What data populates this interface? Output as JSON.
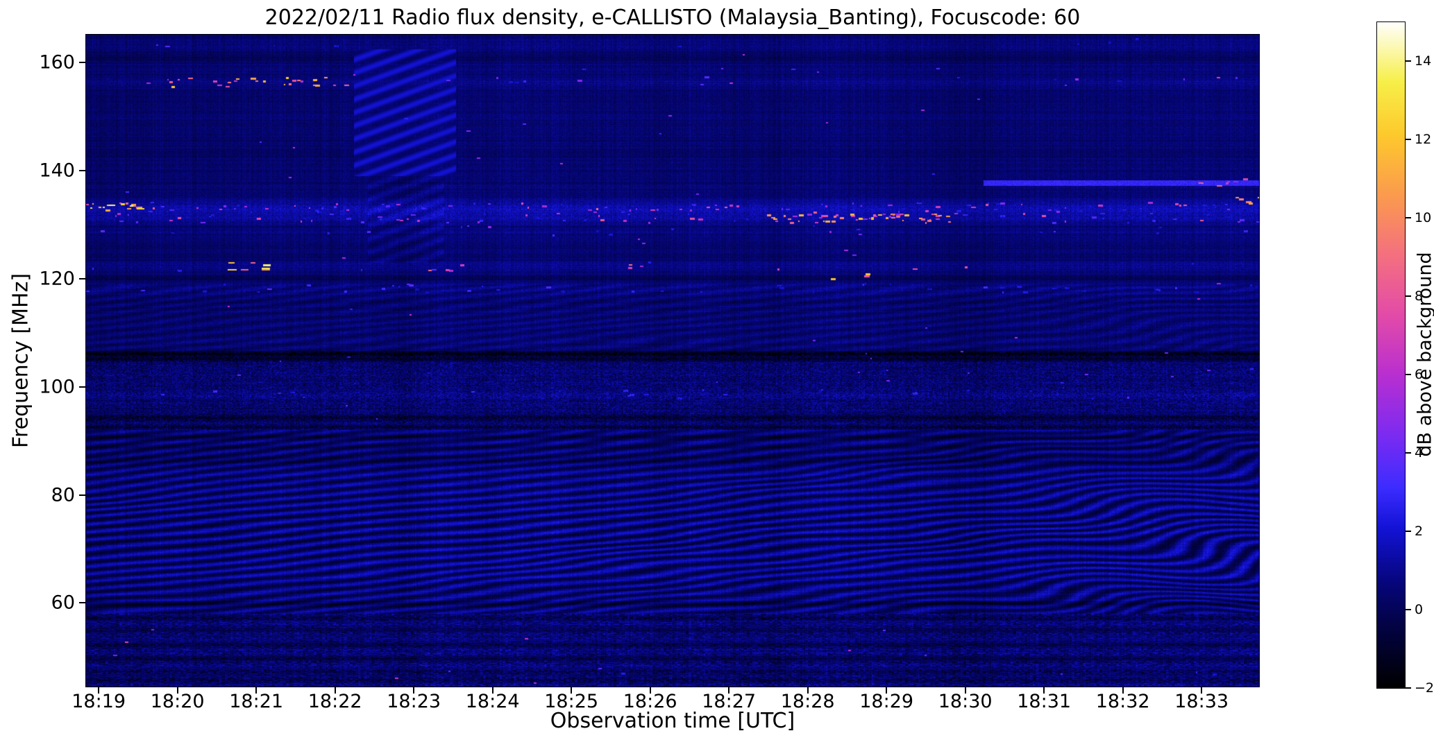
{
  "page": {
    "background": "#ffffff"
  },
  "chart_data": {
    "type": "heatmap",
    "title": "2022/02/11  Radio flux density, e-CALLISTO (Malaysia_Banting), Focuscode: 60",
    "x_axis": {
      "label": "Observation time [UTC]",
      "ticks": [
        "18:19",
        "18:20",
        "18:21",
        "18:22",
        "18:23",
        "18:24",
        "18:25",
        "18:26",
        "18:27",
        "18:28",
        "18:29",
        "18:30",
        "18:31",
        "18:32",
        "18:33"
      ],
      "start_min": 18.84,
      "end_min": 33.73
    },
    "y_axis": {
      "label": "Frequency [MHz]",
      "ticks": [
        160,
        140,
        120,
        100,
        80,
        60
      ],
      "min": 44.5,
      "max": 165.2
    },
    "colorbar": {
      "label": "dB above background",
      "vmin": -2,
      "vmax": 15,
      "ticks": [
        14,
        12,
        10,
        8,
        6,
        4,
        2,
        0,
        -2
      ],
      "colormap_stops": [
        {
          "t": 0.0,
          "c": "#000000"
        },
        {
          "t": 0.1,
          "c": "#03034a"
        },
        {
          "t": 0.16,
          "c": "#06067e"
        },
        {
          "t": 0.24,
          "c": "#1313d6"
        },
        {
          "t": 0.3,
          "c": "#3c2cff"
        },
        {
          "t": 0.38,
          "c": "#7c2bf1"
        },
        {
          "t": 0.47,
          "c": "#b92fd0"
        },
        {
          "t": 0.56,
          "c": "#e34ba8"
        },
        {
          "t": 0.65,
          "c": "#f4707f"
        },
        {
          "t": 0.74,
          "c": "#fb9b4e"
        },
        {
          "t": 0.83,
          "c": "#fdc92c"
        },
        {
          "t": 0.91,
          "c": "#f7ef49"
        },
        {
          "t": 1.0,
          "c": "#ffffff"
        }
      ]
    },
    "features": {
      "background_db": 0.45,
      "regions": [
        {
          "name": "bottom-speckle-rows",
          "f": [
            44.5,
            58
          ],
          "style": "speckle"
        },
        {
          "name": "strong-diagonal-ripple",
          "f": [
            58,
            92
          ],
          "style": "ripple"
        },
        {
          "name": "fine-speckle-band",
          "f": [
            92,
            106.5
          ],
          "style": "fine-speckle"
        },
        {
          "name": "faint-ripple-band",
          "f": [
            106.5,
            119
          ],
          "style": "ripple-faint"
        },
        {
          "name": "quiet-dark-blue-top",
          "f": [
            119,
            165.2
          ],
          "style": "quiet"
        }
      ],
      "right_wave_start_u": 0.7,
      "dark_lines": [
        {
          "f": 106.1,
          "a": 1.9,
          "w": 0.5
        },
        {
          "f": 105.1,
          "a": 1.2,
          "w": 0.45
        },
        {
          "f": 120.1,
          "a": 0.55,
          "w": 0.5
        },
        {
          "f": 94.3,
          "a": 1.1,
          "w": 0.5
        },
        {
          "f": 92.6,
          "a": 0.9,
          "w": 0.45
        },
        {
          "f": 90.7,
          "a": 0.9,
          "w": 0.45
        },
        {
          "f": 88.9,
          "a": 0.7,
          "w": 0.5
        },
        {
          "f": 86.6,
          "a": 0.6,
          "w": 0.9
        },
        {
          "f": 59.8,
          "a": 0.9,
          "w": 0.5
        },
        {
          "f": 57.2,
          "a": 0.8,
          "w": 0.5
        },
        {
          "f": 55.0,
          "a": 0.7,
          "w": 0.5
        },
        {
          "f": 52.3,
          "a": 0.8,
          "w": 0.5
        },
        {
          "f": 49.6,
          "a": 0.9,
          "w": 0.5
        },
        {
          "f": 47.2,
          "a": 0.8,
          "w": 0.5
        },
        {
          "f": 45.7,
          "a": 0.7,
          "w": 0.5
        },
        {
          "f": 160.9,
          "a": 0.6,
          "w": 0.5
        },
        {
          "f": 143.2,
          "a": 0.3,
          "w": 0.6
        }
      ],
      "emission_rows": [
        {
          "f": 163.6,
          "p": 0.01,
          "max": 6,
          "glow": 0.25,
          "gw": 0.7
        },
        {
          "f": 156.4,
          "p": 0.045,
          "max": 13,
          "glow": 0.5,
          "gw": 0.8,
          "hot_u": [
            0.07,
            0.24
          ],
          "hot_mult": 3
        },
        {
          "f": 133.2,
          "p": 0.17,
          "max": 15,
          "glow": 1.05,
          "gw": 1.3,
          "hot_u": [
            0.0,
            0.05
          ],
          "hot_mult": 2.5
        },
        {
          "f": 131.2,
          "p": 0.12,
          "max": 13,
          "glow": 0.8,
          "gw": 1.1,
          "hot_u": [
            0.58,
            0.74
          ],
          "hot_mult": 3
        },
        {
          "f": 128.9,
          "p": 0.025,
          "max": 8,
          "glow": 0.25,
          "gw": 0.7
        },
        {
          "f": 122.3,
          "p": 0.018,
          "max": 13,
          "glow": 0.45,
          "gw": 0.9
        },
        {
          "f": 118.2,
          "p": 0.07,
          "max": 6,
          "glow": 0.45,
          "gw": 0.8
        },
        {
          "f": 98.6,
          "p": 0.04,
          "max": 6,
          "glow": 0.35,
          "gw": 0.7
        },
        {
          "f": 47.5,
          "p": 0.015,
          "max": 7,
          "glow": 0.0,
          "gw": 0.5
        }
      ],
      "blue_line": {
        "f": 137.7,
        "u0": 0.765,
        "db": 2.8
      },
      "stripe_patch": {
        "u": [
          0.228,
          0.315
        ],
        "f": [
          139,
          162.5
        ]
      },
      "stripe_patch2": {
        "u": [
          0.24,
          0.305
        ],
        "f": [
          123,
          139
        ]
      },
      "clusters": [
        {
          "f": 122.3,
          "u": [
            0.098,
            0.152
          ],
          "n": 7,
          "vmin": 9,
          "vmax": 15,
          "wmin": 6,
          "wmax": 14
        },
        {
          "f": 133.4,
          "u": [
            0.0,
            0.045
          ],
          "n": 6,
          "vmin": 10,
          "vmax": 15,
          "wmin": 5,
          "wmax": 12
        },
        {
          "f": 134.6,
          "u": [
            0.972,
            1.0
          ],
          "n": 5,
          "vmin": 9,
          "vmax": 14,
          "wmin": 5,
          "wmax": 10
        },
        {
          "f": 137.8,
          "u": [
            0.93,
            1.0
          ],
          "n": 7,
          "vmin": 5,
          "vmax": 10,
          "wmin": 4,
          "wmax": 9
        },
        {
          "f": 131.6,
          "u": [
            0.6,
            0.73
          ],
          "n": 26,
          "vmin": 5,
          "vmax": 13,
          "wmin": 3,
          "wmax": 8
        },
        {
          "f": 133.0,
          "u": [
            0.52,
            0.57
          ],
          "n": 5,
          "vmin": 5,
          "vmax": 11,
          "wmin": 3,
          "wmax": 7
        },
        {
          "f": 121.9,
          "u": [
            0.29,
            0.335
          ],
          "n": 4,
          "vmin": 6,
          "vmax": 12,
          "wmin": 4,
          "wmax": 8
        },
        {
          "f": 122.1,
          "u": [
            0.455,
            0.48
          ],
          "n": 3,
          "vmin": 6,
          "vmax": 12,
          "wmin": 4,
          "wmax": 8
        },
        {
          "f": 156.5,
          "u": [
            0.135,
            0.225
          ],
          "n": 9,
          "vmin": 5,
          "vmax": 12,
          "wmin": 4,
          "wmax": 9
        },
        {
          "f": 120.6,
          "u": [
            0.63,
            0.67
          ],
          "n": 3,
          "vmin": 8,
          "vmax": 14,
          "wmin": 4,
          "wmax": 9
        }
      ]
    }
  }
}
